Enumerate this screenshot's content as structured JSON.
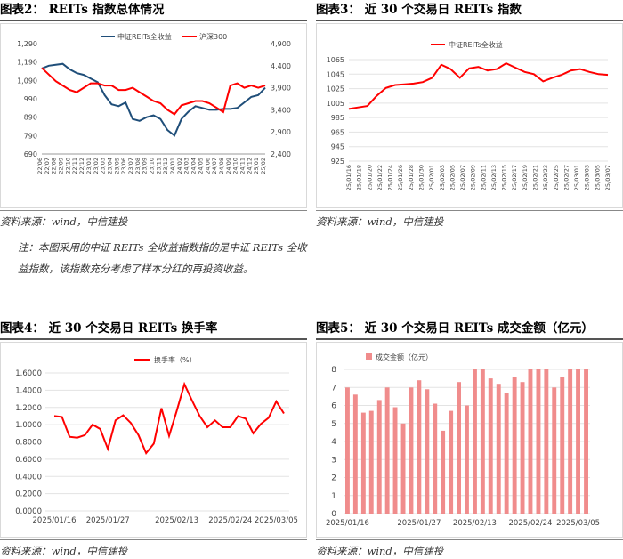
{
  "panels": {
    "p2": {
      "title": "图表2：  REITs 指数总体情况",
      "source": "资料来源：wind，中信建投"
    },
    "p3": {
      "title": "图表3：  近 30 个交易日 REITs 指数",
      "source": "资料来源：wind，中信建投"
    },
    "p4": {
      "title": "图表4：  近 30 个交易日 REITs 换手率",
      "source": "资料来源：wind，中信建投"
    },
    "p5": {
      "title": "图表5：  近 30 个交易日 REITs 成交金额（亿元）",
      "source": "资料来源：wind，中信建投"
    }
  },
  "note": "注：本图采用的中证 REITs 全收益指数指的是中证 REITs 全收益指数，该指数充分考虑了样本分红的再投资收益。",
  "colors": {
    "red": "#ff0000",
    "navy": "#1f4e79",
    "bar": "#f08c8c",
    "grid": "#e3e3e3"
  },
  "chart_data": [
    {
      "id": "reits_overview",
      "type": "line",
      "title": "",
      "x": [
        "22/06",
        "22/07",
        "22/08",
        "22/09",
        "22/10",
        "22/11",
        "22/12",
        "23/01",
        "23/02",
        "23/03",
        "23/04",
        "23/05",
        "23/06",
        "23/07",
        "23/08",
        "23/09",
        "23/10",
        "23/11",
        "23/12",
        "24/01",
        "24/02",
        "24/03",
        "24/04",
        "24/05",
        "24/06",
        "24/07",
        "24/08",
        "24/09",
        "24/10",
        "24/11",
        "24/12",
        "25/01",
        "25/02"
      ],
      "ylim_left": [
        690,
        1290
      ],
      "yticks_left": [
        "690",
        "790",
        "890",
        "990",
        "1,090",
        "1,190",
        "1,290"
      ],
      "ylim_right": [
        2400,
        4900
      ],
      "yticks_right": [
        "2,400",
        "2,900",
        "3,400",
        "3,900",
        "4,400",
        "4,900"
      ],
      "series": [
        {
          "name": "中证REITs全收益",
          "axis": "left",
          "values": [
            1155,
            1170,
            1175,
            1180,
            1150,
            1130,
            1120,
            1100,
            1080,
            1010,
            960,
            950,
            970,
            880,
            870,
            890,
            900,
            880,
            820,
            790,
            880,
            920,
            950,
            940,
            930,
            930,
            935,
            935,
            940,
            970,
            1000,
            1010,
            1050
          ]
        },
        {
          "name": "沪深300",
          "axis": "right",
          "values": [
            4350,
            4200,
            4050,
            3950,
            3850,
            3800,
            3900,
            4000,
            4000,
            3950,
            3950,
            3850,
            3850,
            3900,
            3800,
            3700,
            3600,
            3550,
            3400,
            3300,
            3500,
            3550,
            3600,
            3600,
            3550,
            3450,
            3350,
            3950,
            4000,
            3900,
            3950,
            3900,
            3950
          ]
        }
      ],
      "legend": "top-center"
    },
    {
      "id": "reits_30d_index",
      "type": "line",
      "title": "",
      "x": [
        "25/01/16",
        "25/01/20",
        "25/01/22",
        "25/01/24",
        "25/01/28",
        "25/01/30",
        "25/02/04",
        "25/02/06",
        "25/02/08",
        "25/02/10",
        "25/02/11",
        "25/02/12",
        "25/02/13",
        "25/02/14",
        "25/02/17",
        "25/02/18",
        "25/02/19",
        "25/02/20",
        "25/02/21",
        "25/02/24",
        "25/02/25",
        "25/02/26",
        "25/02/27",
        "25/02/28",
        "25/03/03",
        "25/03/04",
        "25/03/05",
        "25/03/06",
        "25/03/07"
      ],
      "xticks": [
        "25/01/16",
        "25/01/18",
        "25/01/20",
        "25/01/22",
        "25/01/24",
        "25/01/26",
        "25/01/28",
        "25/01/30",
        "25/02/01",
        "25/02/03",
        "25/02/05",
        "25/02/07",
        "25/02/09",
        "25/02/11",
        "25/02/13",
        "25/02/15",
        "25/02/17",
        "25/02/19",
        "25/02/21",
        "25/02/23",
        "25/02/25",
        "25/02/27",
        "25/03/01",
        "25/03/03",
        "25/03/05",
        "25/03/07"
      ],
      "ylim": [
        925,
        1065
      ],
      "yticks": [
        "925",
        "945",
        "965",
        "985",
        "1005",
        "1025",
        "1045",
        "1065"
      ],
      "series": [
        {
          "name": "中证REITs全收益",
          "values": [
            997,
            999,
            1001,
            1015,
            1026,
            1030,
            1031,
            1032,
            1034,
            1040,
            1058,
            1052,
            1040,
            1053,
            1055,
            1050,
            1052,
            1060,
            1054,
            1048,
            1045,
            1035,
            1040,
            1044,
            1050,
            1052,
            1048,
            1045,
            1044
          ]
        }
      ],
      "legend": "top-left"
    },
    {
      "id": "reits_turnover",
      "type": "line",
      "title": "",
      "xticks": [
        "2025/01/16",
        "2025/01/27",
        "2025/02/13",
        "2025/02/24",
        "2025/03/05"
      ],
      "ylim": [
        0,
        1.6
      ],
      "yticks": [
        "0.0000",
        "0.2000",
        "0.4000",
        "0.6000",
        "0.8000",
        "1.0000",
        "1.2000",
        "1.4000",
        "1.6000"
      ],
      "series": [
        {
          "name": "换手率（%）",
          "values": [
            1.1,
            1.09,
            0.86,
            0.85,
            0.88,
            1.0,
            0.95,
            0.72,
            1.05,
            1.11,
            1.02,
            0.88,
            0.67,
            0.78,
            1.19,
            0.87,
            1.16,
            1.47,
            1.28,
            1.1,
            0.97,
            1.05,
            0.97,
            0.97,
            1.1,
            1.07,
            0.9,
            1.01,
            1.08,
            1.27,
            1.13
          ]
        }
      ],
      "legend": "top-center"
    },
    {
      "id": "reits_amount",
      "type": "bar",
      "title": "",
      "xticks": [
        "2025/01/16",
        "2025/01/27",
        "2025/02/13",
        "2025/02/24",
        "2025/03/05"
      ],
      "ylim": [
        0,
        8
      ],
      "yticks": [
        "0",
        "1",
        "2",
        "3",
        "4",
        "5",
        "6",
        "7",
        "8"
      ],
      "series": [
        {
          "name": "成交金额（亿元）",
          "values": [
            7.0,
            6.6,
            5.6,
            5.7,
            6.3,
            7.0,
            5.9,
            5.0,
            7.0,
            7.4,
            6.9,
            6.1,
            4.6,
            5.7,
            7.3,
            6.0,
            8,
            8,
            7.5,
            7.2,
            6.7,
            7.6,
            7.3,
            8,
            8,
            8,
            7.0,
            7.6,
            8,
            8,
            8
          ]
        }
      ],
      "legend": "top-left"
    }
  ]
}
